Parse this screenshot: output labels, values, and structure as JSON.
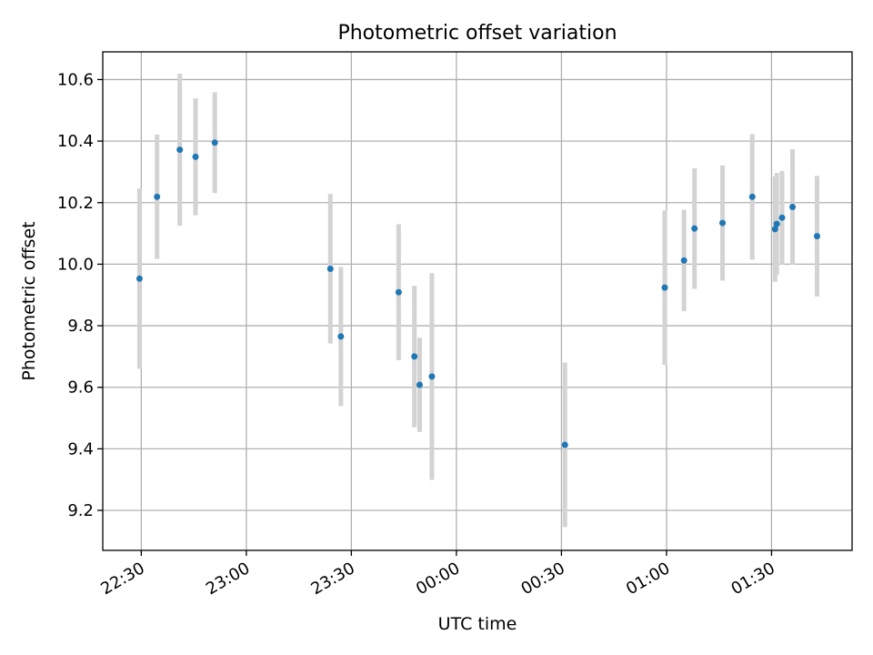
{
  "chart_data": {
    "type": "scatter",
    "title": "Photometric offset variation",
    "xlabel": "UTC time",
    "ylabel": "Photometric offset",
    "xlim": [
      "22:19",
      "01:53"
    ],
    "ylim": [
      9.07,
      10.69
    ],
    "grid": true,
    "x_ticks": [
      "22:30",
      "23:00",
      "23:30",
      "00:00",
      "00:30",
      "01:00",
      "01:30"
    ],
    "y_ticks": [
      "9.2",
      "9.4",
      "9.6",
      "9.8",
      "10.0",
      "10.2",
      "10.4",
      "10.6"
    ],
    "series": [
      {
        "marker_color": "#1f77b4",
        "errorbar_color": "#d3d3d3",
        "points": [
          {
            "time": "22:29:30",
            "y": 9.953,
            "y_err": 0.293
          },
          {
            "time": "22:34:30",
            "y": 10.219,
            "y_err": 0.202
          },
          {
            "time": "22:41:00",
            "y": 10.372,
            "y_err": 0.247
          },
          {
            "time": "22:45:30",
            "y": 10.349,
            "y_err": 0.19
          },
          {
            "time": "22:51:00",
            "y": 10.395,
            "y_err": 0.164
          },
          {
            "time": "23:24:00",
            "y": 9.985,
            "y_err": 0.243
          },
          {
            "time": "23:27:00",
            "y": 9.765,
            "y_err": 0.226
          },
          {
            "time": "23:43:30",
            "y": 9.909,
            "y_err": 0.221
          },
          {
            "time": "23:48:00",
            "y": 9.7,
            "y_err": 0.23
          },
          {
            "time": "23:49:30",
            "y": 9.608,
            "y_err": 0.153
          },
          {
            "time": "23:53:00",
            "y": 9.635,
            "y_err": 0.336
          },
          {
            "time": "00:31:00",
            "y": 9.413,
            "y_err": 0.267
          },
          {
            "time": "00:59:30",
            "y": 9.924,
            "y_err": 0.251
          },
          {
            "time": "01:05:00",
            "y": 10.012,
            "y_err": 0.165
          },
          {
            "time": "01:08:00",
            "y": 10.116,
            "y_err": 0.196
          },
          {
            "time": "01:16:00",
            "y": 10.134,
            "y_err": 0.187
          },
          {
            "time": "01:24:30",
            "y": 10.219,
            "y_err": 0.204
          },
          {
            "time": "01:31:00",
            "y": 10.114,
            "y_err": 0.171
          },
          {
            "time": "01:31:30",
            "y": 10.131,
            "y_err": 0.166
          },
          {
            "time": "01:33:00",
            "y": 10.151,
            "y_err": 0.152
          },
          {
            "time": "01:36:00",
            "y": 10.186,
            "y_err": 0.188
          },
          {
            "time": "01:43:00",
            "y": 10.091,
            "y_err": 0.196
          }
        ]
      }
    ]
  }
}
